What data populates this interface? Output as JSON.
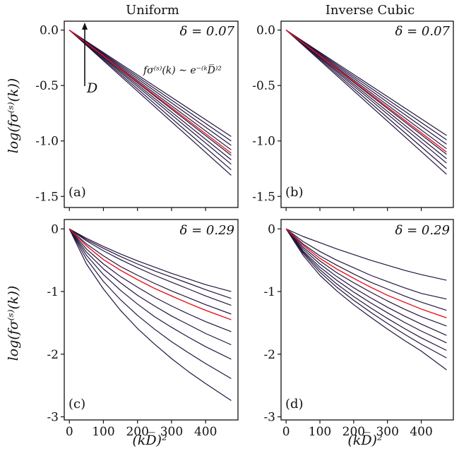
{
  "figure": {
    "col_titles": [
      "Uniform",
      "Inverse Cubic"
    ],
    "ylabel": "log(fσ⁽ˢ⁾(k))",
    "xlabel": "(kD̅)²",
    "annotation_formula": "fσ⁽ˢ⁾(k) ∼ e⁻⁽ᵏD̅⁾²",
    "arrow_label": "D"
  },
  "chart_data": [
    {
      "type": "line",
      "panel": "(a)",
      "column_title": "Uniform",
      "delta_label": "δ = 0.07",
      "xlim": [
        -15,
        495
      ],
      "ylim": [
        -1.6,
        0.08
      ],
      "yticks": [
        0.0,
        -0.5,
        -1.0,
        -1.5
      ],
      "ytick_labels": [
        "0.0",
        "-0.5",
        "-1.0",
        "-1.5"
      ],
      "xticks": [
        0,
        100,
        200,
        300,
        400
      ],
      "xtick_labels": [
        "0",
        "100",
        "200",
        "300",
        "400"
      ],
      "x": [
        0,
        475
      ],
      "series": [
        {
          "values": [
            0,
            -0.96
          ],
          "highlight": false
        },
        {
          "values": [
            0,
            -1.0
          ],
          "highlight": false
        },
        {
          "values": [
            0,
            -1.04
          ],
          "highlight": false
        },
        {
          "values": [
            0,
            -1.08
          ],
          "highlight": false
        },
        {
          "values": [
            0,
            -1.11
          ],
          "highlight": true
        },
        {
          "values": [
            0,
            -1.13
          ],
          "highlight": false
        },
        {
          "values": [
            0,
            -1.17
          ],
          "highlight": false
        },
        {
          "values": [
            0,
            -1.21
          ],
          "highlight": false
        },
        {
          "values": [
            0,
            -1.26
          ],
          "highlight": false
        },
        {
          "values": [
            0,
            -1.31
          ],
          "highlight": false
        }
      ]
    },
    {
      "type": "line",
      "panel": "(b)",
      "column_title": "Inverse Cubic",
      "delta_label": "δ = 0.07",
      "xlim": [
        -15,
        495
      ],
      "ylim": [
        -1.6,
        0.08
      ],
      "yticks": [
        0.0,
        -0.5,
        -1.0,
        -1.5
      ],
      "ytick_labels": [
        "0.0",
        "-0.5",
        "-1.0",
        "-1.5"
      ],
      "xticks": [
        0,
        100,
        200,
        300,
        400
      ],
      "xtick_labels": [
        "0",
        "100",
        "200",
        "300",
        "400"
      ],
      "x": [
        0,
        475
      ],
      "series": [
        {
          "values": [
            0,
            -0.95
          ],
          "highlight": false
        },
        {
          "values": [
            0,
            -0.99
          ],
          "highlight": false
        },
        {
          "values": [
            0,
            -1.03
          ],
          "highlight": false
        },
        {
          "values": [
            0,
            -1.07
          ],
          "highlight": false
        },
        {
          "values": [
            0,
            -1.1
          ],
          "highlight": true
        },
        {
          "values": [
            0,
            -1.12
          ],
          "highlight": false
        },
        {
          "values": [
            0,
            -1.16
          ],
          "highlight": false
        },
        {
          "values": [
            0,
            -1.2
          ],
          "highlight": false
        },
        {
          "values": [
            0,
            -1.25
          ],
          "highlight": false
        },
        {
          "values": [
            0,
            -1.3
          ],
          "highlight": false
        }
      ]
    },
    {
      "type": "line",
      "panel": "(c)",
      "column_title": "Uniform",
      "delta_label": "δ = 0.29",
      "xlim": [
        -15,
        495
      ],
      "ylim": [
        -3.05,
        0.15
      ],
      "yticks": [
        0,
        -1,
        -2,
        -3
      ],
      "ytick_labels": [
        "0",
        "-1",
        "-2",
        "-3"
      ],
      "xticks": [
        0,
        100,
        200,
        300,
        400
      ],
      "xtick_labels": [
        "0",
        "100",
        "200",
        "300",
        "400"
      ],
      "xaxis_label": "(kD̅)²",
      "x": [
        0,
        50,
        100,
        150,
        200,
        250,
        300,
        350,
        400,
        475
      ],
      "series": [
        {
          "values": [
            0,
            -0.15,
            -0.28,
            -0.4,
            -0.51,
            -0.61,
            -0.71,
            -0.8,
            -0.89,
            -1.0
          ],
          "highlight": false
        },
        {
          "values": [
            0,
            -0.17,
            -0.31,
            -0.44,
            -0.56,
            -0.67,
            -0.77,
            -0.87,
            -0.97,
            -1.11
          ],
          "highlight": false
        },
        {
          "values": [
            0,
            -0.19,
            -0.35,
            -0.49,
            -0.62,
            -0.74,
            -0.85,
            -0.96,
            -1.07,
            -1.22
          ],
          "highlight": false
        },
        {
          "values": [
            0,
            -0.24,
            -0.43,
            -0.6,
            -0.74,
            -0.87,
            -0.99,
            -1.1,
            -1.21,
            -1.36
          ],
          "highlight": false
        },
        {
          "values": [
            0,
            -0.27,
            -0.49,
            -0.66,
            -0.81,
            -0.95,
            -1.07,
            -1.19,
            -1.3,
            -1.45
          ],
          "highlight": true
        },
        {
          "values": [
            0,
            -0.32,
            -0.56,
            -0.76,
            -0.93,
            -1.09,
            -1.23,
            -1.36,
            -1.48,
            -1.64
          ],
          "highlight": false
        },
        {
          "values": [
            0,
            -0.37,
            -0.64,
            -0.86,
            -1.06,
            -1.23,
            -1.39,
            -1.53,
            -1.67,
            -1.85
          ],
          "highlight": false
        },
        {
          "values": [
            0,
            -0.42,
            -0.73,
            -0.98,
            -1.2,
            -1.4,
            -1.57,
            -1.73,
            -1.88,
            -2.08
          ],
          "highlight": false
        },
        {
          "values": [
            0,
            -0.48,
            -0.84,
            -1.13,
            -1.38,
            -1.6,
            -1.8,
            -1.98,
            -2.15,
            -2.39
          ],
          "highlight": false
        },
        {
          "values": [
            0,
            -0.56,
            -0.96,
            -1.3,
            -1.59,
            -1.84,
            -2.07,
            -2.28,
            -2.47,
            -2.74
          ],
          "highlight": false
        }
      ]
    },
    {
      "type": "line",
      "panel": "(d)",
      "column_title": "Inverse Cubic",
      "delta_label": "δ = 0.29",
      "xlim": [
        -15,
        495
      ],
      "ylim": [
        -3.05,
        0.15
      ],
      "yticks": [
        0,
        -1,
        -2,
        -3
      ],
      "ytick_labels": [
        "0",
        "-1",
        "-2",
        "-3"
      ],
      "xticks": [
        0,
        100,
        200,
        300,
        400
      ],
      "xtick_labels": [
        "0",
        "100",
        "200",
        "300",
        "400"
      ],
      "xaxis_label": "(kD̅)²",
      "x": [
        0,
        50,
        100,
        150,
        200,
        250,
        300,
        350,
        400,
        475
      ],
      "series": [
        {
          "values": [
            0,
            -0.12,
            -0.22,
            -0.32,
            -0.41,
            -0.5,
            -0.58,
            -0.66,
            -0.73,
            -0.82
          ],
          "highlight": false
        },
        {
          "values": [
            0,
            -0.2,
            -0.36,
            -0.5,
            -0.62,
            -0.74,
            -0.84,
            -0.94,
            -1.03,
            -1.12
          ],
          "highlight": false
        },
        {
          "values": [
            0,
            -0.24,
            -0.43,
            -0.58,
            -0.72,
            -0.85,
            -0.96,
            -1.07,
            -1.17,
            -1.3
          ],
          "highlight": false
        },
        {
          "values": [
            0,
            -0.26,
            -0.47,
            -0.64,
            -0.79,
            -0.93,
            -1.06,
            -1.17,
            -1.28,
            -1.42
          ],
          "highlight": true
        },
        {
          "values": [
            0,
            -0.29,
            -0.51,
            -0.7,
            -0.86,
            -1.01,
            -1.15,
            -1.28,
            -1.4,
            -1.55
          ],
          "highlight": false
        },
        {
          "values": [
            0,
            -0.32,
            -0.56,
            -0.76,
            -0.94,
            -1.1,
            -1.25,
            -1.39,
            -1.52,
            -1.7
          ],
          "highlight": false
        },
        {
          "values": [
            0,
            -0.35,
            -0.61,
            -0.82,
            -1.01,
            -1.18,
            -1.34,
            -1.49,
            -1.63,
            -1.82
          ],
          "highlight": false
        },
        {
          "values": [
            0,
            -0.37,
            -0.65,
            -0.88,
            -1.08,
            -1.26,
            -1.43,
            -1.59,
            -1.74,
            -1.94
          ],
          "highlight": false
        },
        {
          "values": [
            0,
            -0.39,
            -0.69,
            -0.93,
            -1.14,
            -1.33,
            -1.51,
            -1.68,
            -1.84,
            -2.06
          ],
          "highlight": false
        },
        {
          "values": [
            0,
            -0.42,
            -0.74,
            -0.99,
            -1.21,
            -1.41,
            -1.6,
            -1.78,
            -1.95,
            -2.25
          ],
          "highlight": false
        }
      ]
    }
  ],
  "colors": {
    "line": "#24153f",
    "highlight": "#e8141c",
    "axis": "#111111"
  }
}
